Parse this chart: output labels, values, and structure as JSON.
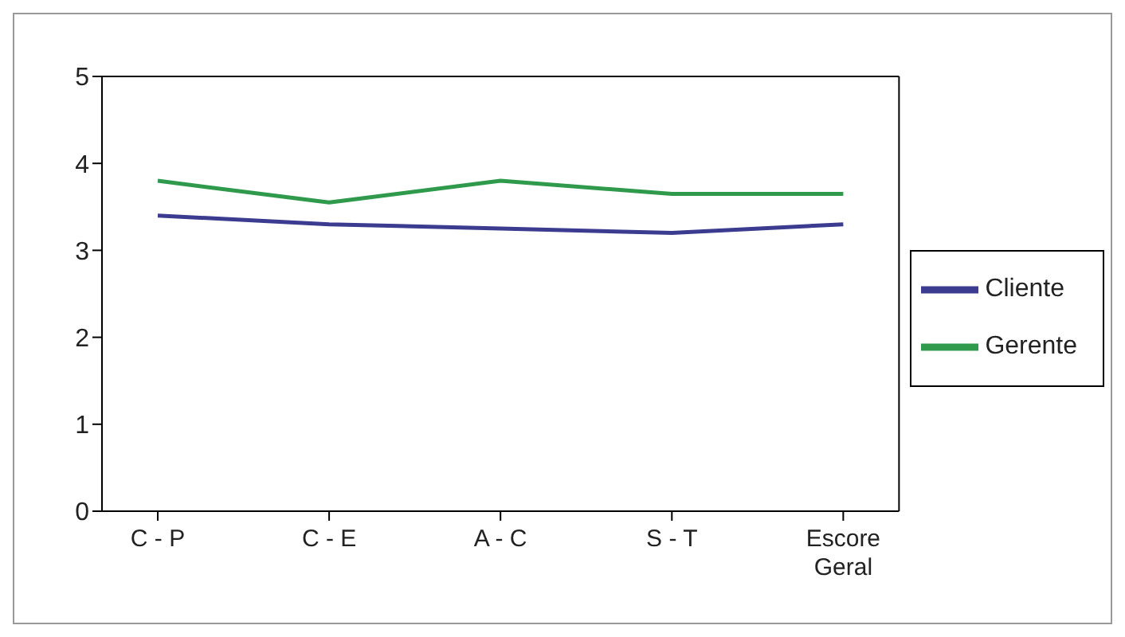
{
  "chart_data": {
    "type": "line",
    "categories": [
      "C - P",
      "C - E",
      "A - C",
      "S - T",
      "Escore Geral"
    ],
    "series": [
      {
        "name": "Cliente",
        "color": "#3b3b8f",
        "values": [
          3.4,
          3.3,
          3.25,
          3.2,
          3.3
        ]
      },
      {
        "name": "Gerente",
        "color": "#2f9a4c",
        "values": [
          3.8,
          3.55,
          3.8,
          3.65,
          3.65
        ]
      }
    ],
    "ylim": [
      0,
      5
    ],
    "yticks": [
      0,
      1,
      2,
      3,
      4,
      5
    ],
    "legend": "right",
    "marker": "none",
    "line_style": "solid"
  }
}
